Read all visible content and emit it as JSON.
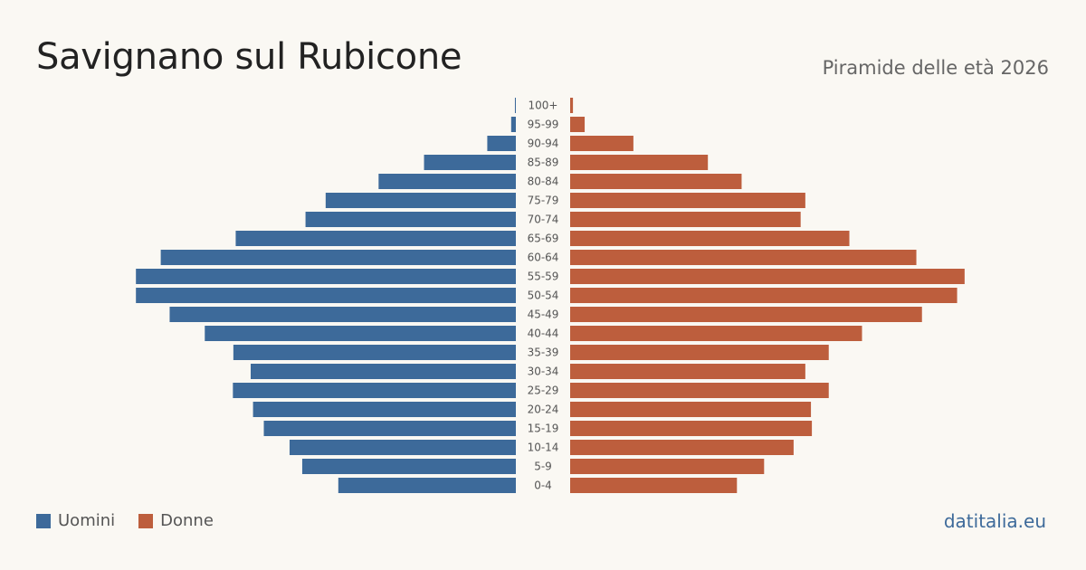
{
  "title": "Savignano sul Rubicone",
  "subtitle": "Piramide delle età 2026",
  "brand": "datitalia.eu",
  "colors": {
    "male": "#3d6a9a",
    "female": "#bd5e3d",
    "brand": "#3d6a9a"
  },
  "legend": {
    "male_label": "Uomini",
    "female_label": "Donne"
  },
  "chart_data": {
    "type": "bar",
    "orientation": "horizontal-diverging",
    "categories": [
      "0-4",
      "5-9",
      "10-14",
      "15-19",
      "20-24",
      "25-29",
      "30-34",
      "35-39",
      "40-44",
      "45-49",
      "50-54",
      "55-59",
      "60-64",
      "65-69",
      "70-74",
      "75-79",
      "80-84",
      "85-89",
      "90-94",
      "95-99",
      "100+"
    ],
    "series": [
      {
        "name": "Uomini",
        "values": [
          379,
          456,
          483,
          538,
          561,
          604,
          566,
          603,
          664,
          739,
          811,
          811,
          758,
          598,
          449,
          406,
          293,
          196,
          61,
          10,
          2
        ]
      },
      {
        "name": "Donne",
        "values": [
          356,
          414,
          477,
          516,
          514,
          552,
          502,
          552,
          623,
          751,
          826,
          842,
          739,
          596,
          492,
          502,
          366,
          294,
          135,
          31,
          6
        ]
      }
    ],
    "xlim": [
      0,
      850
    ],
    "grid": false,
    "legend_position": "bottom-left"
  }
}
